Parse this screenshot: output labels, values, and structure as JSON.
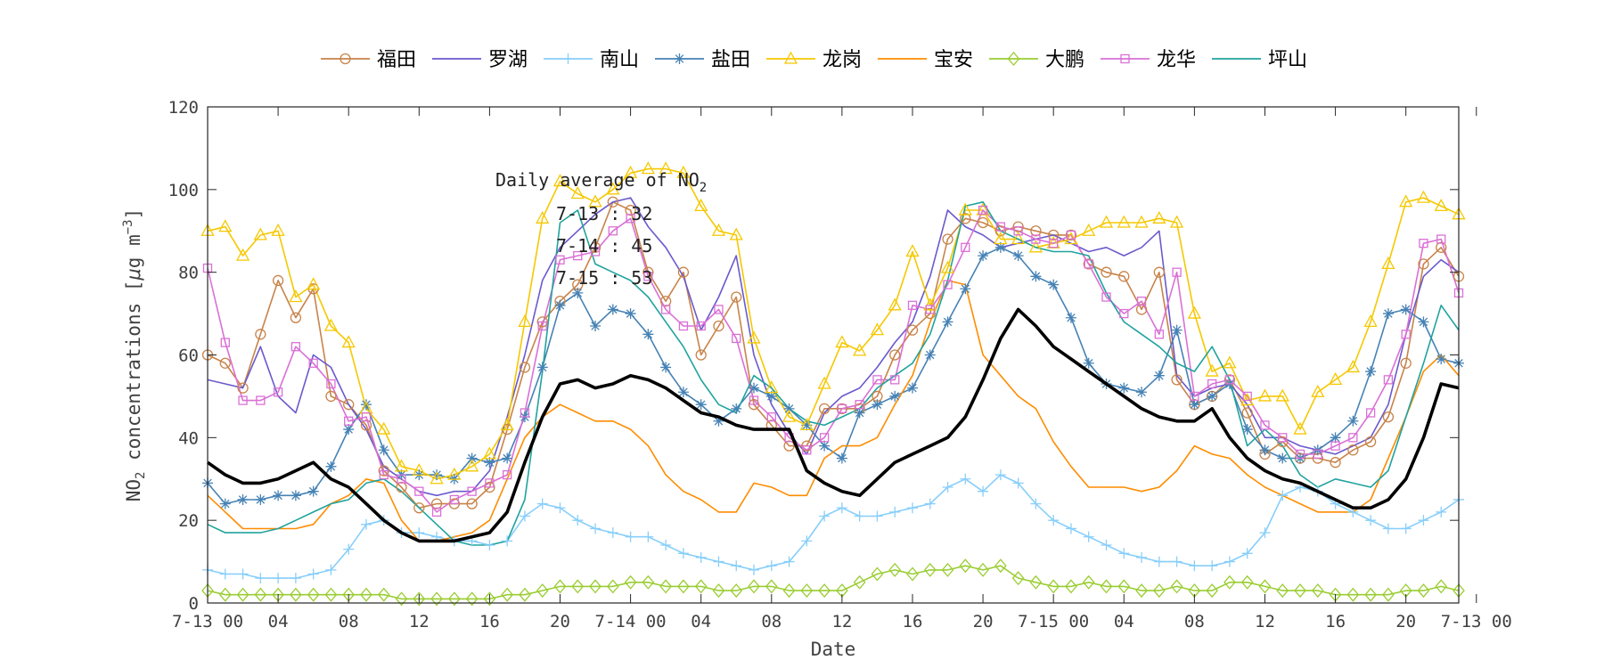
{
  "chart_data": {
    "type": "line",
    "title": "",
    "xlabel": "Date",
    "ylabel_main": "NO",
    "ylabel_sub": "2",
    "ylabel_rest": " concentrations [",
    "ylabel_mu": "μ",
    "ylabel_unit": "g m",
    "ylabel_exp": "−3",
    "ylabel_close": "]",
    "ylim": [
      0,
      120
    ],
    "yticks": [
      0,
      20,
      40,
      60,
      80,
      100,
      120
    ],
    "xlim": [
      0,
      71
    ],
    "xticks": [
      {
        "x": 0,
        "label": "7-13 00"
      },
      {
        "x": 4,
        "label": "04"
      },
      {
        "x": 8,
        "label": "08"
      },
      {
        "x": 12,
        "label": "12"
      },
      {
        "x": 16,
        "label": "16"
      },
      {
        "x": 20,
        "label": "20"
      },
      {
        "x": 24,
        "label": "7-14 00"
      },
      {
        "x": 28,
        "label": "04"
      },
      {
        "x": 32,
        "label": "08"
      },
      {
        "x": 36,
        "label": "12"
      },
      {
        "x": 40,
        "label": "16"
      },
      {
        "x": 44,
        "label": "20"
      },
      {
        "x": 48,
        "label": "7-15 00"
      },
      {
        "x": 52,
        "label": "04"
      },
      {
        "x": 56,
        "label": "08"
      },
      {
        "x": 60,
        "label": "12"
      },
      {
        "x": 64,
        "label": "16"
      },
      {
        "x": 68,
        "label": "20"
      },
      {
        "x": 72,
        "label": "7-13 00"
      }
    ],
    "legend_position": "top",
    "grid": false,
    "annotation": {
      "title_main": "Daily average of NO",
      "title_sub": "2",
      "lines": [
        "7-13 : 32",
        "7-14 : 45",
        "7-15 : 53"
      ]
    },
    "series": [
      {
        "name": "福田",
        "color": "#c8834a",
        "marker": "circle",
        "values": [
          60,
          58,
          52,
          65,
          78,
          69,
          76,
          50,
          48,
          43,
          32,
          28,
          23,
          24,
          24,
          24,
          28,
          42,
          57,
          68,
          73,
          77,
          86,
          97,
          95,
          80,
          73,
          80,
          60,
          67,
          74,
          48,
          43,
          38,
          38,
          47,
          47,
          47,
          50,
          60,
          66,
          70,
          88,
          93,
          92,
          90,
          91,
          90,
          89,
          89,
          82,
          80,
          79,
          71,
          80,
          54,
          48,
          50,
          54,
          46,
          36,
          39,
          35,
          35,
          34,
          37,
          39,
          45,
          58,
          82,
          86,
          79
        ]
      },
      {
        "name": "罗湖",
        "color": "#6a5acd",
        "marker": "none",
        "values": [
          54,
          53,
          52,
          62,
          50,
          46,
          60,
          57,
          48,
          42,
          33,
          30,
          27,
          26,
          27,
          27,
          32,
          45,
          60,
          78,
          86,
          90,
          94,
          97,
          98,
          91,
          86,
          79,
          66,
          74,
          84,
          60,
          48,
          41,
          36,
          46,
          50,
          52,
          57,
          63,
          68,
          79,
          95,
          91,
          89,
          86,
          87,
          88,
          89,
          87,
          85,
          86,
          84,
          86,
          90,
          55,
          50,
          52,
          53,
          48,
          40,
          40,
          38,
          37,
          36,
          38,
          40,
          48,
          65,
          79,
          83,
          80
        ]
      },
      {
        "name": "南山",
        "color": "#87cefa",
        "marker": "plus",
        "values": [
          8,
          7,
          7,
          6,
          6,
          6,
          7,
          8,
          13,
          19,
          20,
          17,
          17,
          16,
          15,
          15,
          14,
          15,
          21,
          24,
          23,
          20,
          18,
          17,
          16,
          16,
          14,
          12,
          11,
          10,
          9,
          8,
          9,
          10,
          15,
          21,
          23,
          21,
          21,
          22,
          23,
          24,
          28,
          30,
          27,
          31,
          29,
          24,
          20,
          18,
          16,
          14,
          12,
          11,
          10,
          10,
          9,
          9,
          10,
          12,
          17,
          26,
          28,
          27,
          24,
          22,
          20,
          18,
          18,
          20,
          22,
          25
        ]
      },
      {
        "name": "盐田",
        "color": "#4682b4",
        "marker": "star",
        "values": [
          29,
          24,
          25,
          25,
          26,
          26,
          27,
          33,
          42,
          48,
          37,
          31,
          31,
          31,
          30,
          35,
          34,
          35,
          45,
          57,
          72,
          75,
          67,
          71,
          70,
          65,
          57,
          51,
          48,
          44,
          47,
          52,
          50,
          47,
          43,
          38,
          35,
          46,
          48,
          50,
          52,
          60,
          68,
          76,
          84,
          86,
          84,
          79,
          77,
          69,
          58,
          53,
          52,
          51,
          55,
          66,
          48,
          50,
          53,
          42,
          37,
          35,
          35,
          37,
          40,
          44,
          56,
          70,
          71,
          68,
          59,
          58
        ]
      },
      {
        "name": "龙岗",
        "color": "#f5c800",
        "marker": "triangle",
        "values": [
          90,
          91,
          84,
          89,
          90,
          74,
          77,
          67,
          63,
          47,
          42,
          33,
          32,
          30,
          31,
          33,
          36,
          43,
          68,
          93,
          102,
          99,
          97,
          100,
          104,
          105,
          105,
          104,
          96,
          90,
          89,
          64,
          52,
          45,
          43,
          53,
          63,
          61,
          66,
          72,
          85,
          72,
          81,
          95,
          95,
          88,
          88,
          86,
          87,
          88,
          90,
          92,
          92,
          92,
          93,
          92,
          70,
          56,
          58,
          49,
          50,
          50,
          42,
          51,
          54,
          57,
          68,
          82,
          97,
          98,
          96,
          94
        ]
      },
      {
        "name": "宝安",
        "color": "#ff8c00",
        "marker": "none",
        "values": [
          26,
          22,
          18,
          18,
          18,
          18,
          19,
          24,
          26,
          30,
          29,
          20,
          15,
          15,
          16,
          17,
          20,
          30,
          40,
          45,
          48,
          46,
          44,
          44,
          42,
          38,
          31,
          27,
          25,
          22,
          22,
          29,
          28,
          26,
          26,
          35,
          38,
          38,
          40,
          48,
          55,
          68,
          78,
          77,
          60,
          55,
          50,
          47,
          39,
          33,
          28,
          28,
          28,
          27,
          28,
          32,
          38,
          36,
          35,
          31,
          28,
          26,
          24,
          22,
          22,
          22,
          25,
          35,
          45,
          56,
          60,
          55
        ]
      },
      {
        "name": "大鹏",
        "color": "#9acd32",
        "marker": "diamond",
        "values": [
          3,
          2,
          2,
          2,
          2,
          2,
          2,
          2,
          2,
          2,
          2,
          1,
          1,
          1,
          1,
          1,
          1,
          2,
          2,
          3,
          4,
          4,
          4,
          4,
          5,
          5,
          4,
          4,
          4,
          3,
          3,
          4,
          4,
          3,
          3,
          3,
          3,
          5,
          7,
          8,
          7,
          8,
          8,
          9,
          8,
          9,
          6,
          5,
          4,
          4,
          5,
          4,
          4,
          3,
          3,
          4,
          3,
          3,
          5,
          5,
          4,
          3,
          3,
          3,
          2,
          2,
          2,
          2,
          3,
          3,
          4,
          3
        ]
      },
      {
        "name": "龙华",
        "color": "#da70d6",
        "marker": "square",
        "values": [
          81,
          63,
          49,
          49,
          51,
          62,
          58,
          53,
          44,
          45,
          31,
          30,
          27,
          22,
          25,
          27,
          29,
          31,
          46,
          67,
          83,
          84,
          85,
          90,
          93,
          79,
          71,
          67,
          67,
          71,
          64,
          49,
          45,
          40,
          37,
          40,
          47,
          48,
          54,
          54,
          72,
          71,
          77,
          86,
          95,
          91,
          90,
          88,
          87,
          89,
          82,
          74,
          70,
          73,
          65,
          80,
          50,
          53,
          54,
          50,
          43,
          40,
          36,
          36,
          38,
          40,
          46,
          54,
          65,
          87,
          88,
          75
        ]
      },
      {
        "name": "坪山",
        "color": "#20a39e",
        "marker": "none",
        "values": [
          19,
          17,
          17,
          17,
          18,
          20,
          22,
          24,
          25,
          29,
          30,
          27,
          23,
          19,
          15,
          14,
          14,
          15,
          25,
          56,
          92,
          95,
          82,
          80,
          78,
          74,
          68,
          62,
          54,
          48,
          46,
          55,
          52,
          47,
          44,
          43,
          45,
          47,
          52,
          55,
          58,
          65,
          78,
          96,
          97,
          90,
          88,
          86,
          85,
          85,
          84,
          75,
          68,
          65,
          62,
          58,
          56,
          62,
          54,
          38,
          42,
          38,
          31,
          28,
          30,
          29,
          28,
          32,
          45,
          58,
          72,
          66
        ]
      },
      {
        "name": "",
        "color": "#000000",
        "marker": "none",
        "values": [
          34,
          31,
          29,
          29,
          30,
          32,
          34,
          30,
          28,
          24,
          20,
          17,
          15,
          15,
          15,
          16,
          17,
          22,
          34,
          45,
          53,
          54,
          52,
          53,
          55,
          54,
          52,
          49,
          46,
          45,
          43,
          42,
          42,
          42,
          32,
          29,
          27,
          26,
          30,
          34,
          36,
          38,
          40,
          45,
          54,
          64,
          71,
          67,
          62,
          59,
          56,
          53,
          50,
          47,
          45,
          44,
          44,
          47,
          40,
          35,
          32,
          30,
          29,
          27,
          25,
          23,
          23,
          25,
          30,
          40,
          53,
          52
        ]
      }
    ]
  }
}
